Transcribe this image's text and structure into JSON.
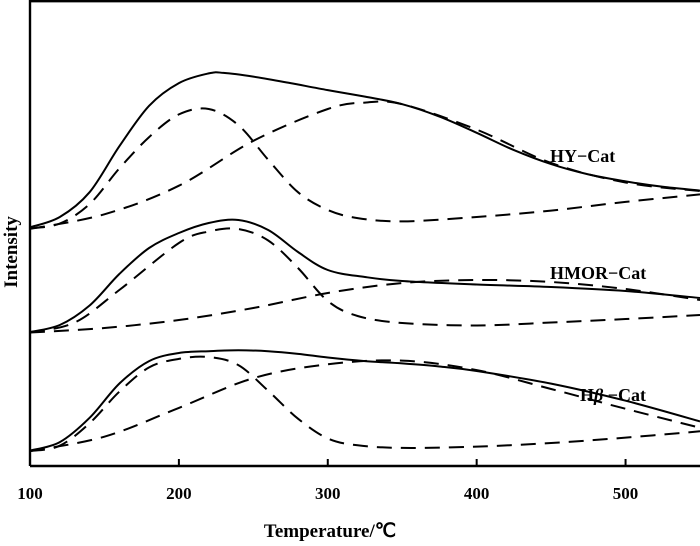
{
  "chart_data": {
    "type": "line",
    "xlabel": "Temperature/℃",
    "ylabel": "Intensity",
    "xlim": [
      100,
      550
    ],
    "xticks": [
      100,
      200,
      300,
      400,
      500
    ],
    "y_ticks_shown": false,
    "grid": false,
    "legend": "none",
    "curve_labels": [
      {
        "prefix": "HY",
        "suffix": "−Cat"
      },
      {
        "prefix": "HMOR",
        "suffix": "−Cat"
      },
      {
        "prefix": "H",
        "greek": "β",
        "suffix": " −Cat"
      }
    ],
    "note": "Stacked TPD profiles; y in relative intensity units (vertically offset). Solid = measured, dashed = fitted peaks.",
    "series": [
      {
        "label_ref": 0,
        "measured": {
          "x": [
            100,
            120,
            140,
            160,
            180,
            200,
            220,
            230,
            250,
            275,
            300,
            325,
            350,
            375,
            400,
            425,
            450,
            475,
            500,
            525,
            550
          ],
          "y": [
            0.05,
            0.24,
            0.7,
            1.55,
            2.3,
            2.72,
            2.9,
            2.91,
            2.84,
            2.72,
            2.59,
            2.47,
            2.33,
            2.1,
            1.8,
            1.48,
            1.22,
            1.03,
            0.9,
            0.8,
            0.73
          ]
        },
        "fit_peaks": [
          {
            "x": [
              100,
              120,
              140,
              160,
              180,
              200,
              220,
              240,
              260,
              280,
              300,
              320,
              350,
              400,
              450,
              500,
              550
            ],
            "y": [
              0.03,
              0.12,
              0.48,
              1.14,
              1.72,
              2.14,
              2.24,
              1.94,
              1.3,
              0.7,
              0.37,
              0.22,
              0.16,
              0.24,
              0.36,
              0.52,
              0.66
            ]
          },
          {
            "x": [
              100,
              150,
              200,
              250,
              300,
              325,
              350,
              400,
              450,
              500,
              550
            ],
            "y": [
              0.02,
              0.29,
              0.82,
              1.65,
              2.24,
              2.36,
              2.33,
              1.86,
              1.24,
              0.88,
              0.72
            ]
          }
        ]
      },
      {
        "label_ref": 1,
        "measured": {
          "x": [
            100,
            120,
            140,
            160,
            180,
            200,
            220,
            240,
            260,
            280,
            300,
            325,
            350,
            400,
            450,
            500,
            550
          ],
          "y": [
            0.02,
            0.16,
            0.55,
            1.18,
            1.7,
            2.0,
            2.2,
            2.26,
            2.06,
            1.62,
            1.26,
            1.12,
            1.04,
            0.97,
            0.92,
            0.84,
            0.7
          ]
        },
        "fit_peaks": [
          {
            "x": [
              100,
              130,
              160,
              200,
              220,
              240,
              260,
              280,
              300,
              320,
              350,
              400,
              450,
              500,
              550
            ],
            "y": [
              0.01,
              0.21,
              0.86,
              1.8,
              2.03,
              2.08,
              1.85,
              1.3,
              0.64,
              0.34,
              0.2,
              0.15,
              0.21,
              0.28,
              0.36
            ]
          },
          {
            "x": [
              100,
              150,
              200,
              250,
              300,
              350,
              400,
              450,
              500,
              550
            ],
            "y": [
              0.01,
              0.1,
              0.26,
              0.5,
              0.8,
              1.0,
              1.06,
              1.02,
              0.88,
              0.66
            ]
          }
        ]
      },
      {
        "label_ref": 2,
        "measured": {
          "x": [
            100,
            120,
            140,
            160,
            180,
            200,
            220,
            240,
            260,
            280,
            300,
            325,
            350,
            375,
            400,
            450,
            500,
            550
          ],
          "y": [
            0.03,
            0.22,
            0.76,
            1.52,
            2.02,
            2.2,
            2.24,
            2.26,
            2.24,
            2.18,
            2.1,
            2.02,
            1.97,
            1.9,
            1.8,
            1.52,
            1.14,
            0.68
          ]
        },
        "fit_peaks": [
          {
            "x": [
              100,
              120,
              140,
              160,
              180,
              200,
              220,
              240,
              260,
              280,
              300,
              320,
              350,
              400,
              450,
              500,
              550
            ],
            "y": [
              0.02,
              0.14,
              0.64,
              1.34,
              1.88,
              2.07,
              2.11,
              1.93,
              1.36,
              0.74,
              0.3,
              0.15,
              0.09,
              0.12,
              0.2,
              0.32,
              0.46
            ]
          },
          {
            "x": [
              100,
              150,
              200,
              250,
              300,
              350,
              400,
              450,
              500,
              550
            ],
            "y": [
              0.02,
              0.34,
              0.98,
              1.64,
              1.95,
              2.03,
              1.82,
              1.4,
              0.96,
              0.54
            ]
          }
        ]
      }
    ]
  }
}
